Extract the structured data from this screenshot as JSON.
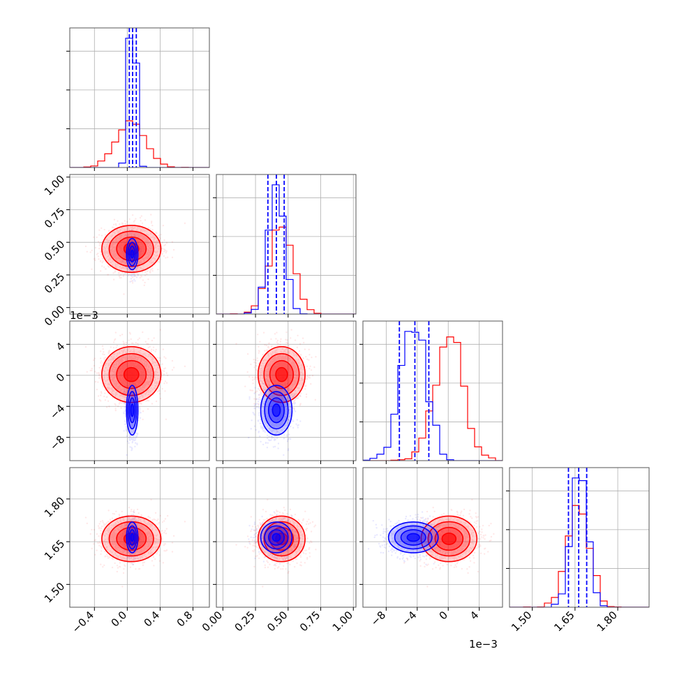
{
  "chart_data": {
    "type": "corner",
    "parameters": [
      {
        "range": [
          -0.7,
          1.0
        ],
        "ticks": [
          -0.4,
          0.0,
          0.4,
          0.8
        ],
        "tick_labels": [
          "−0.4",
          "0.0",
          "0.4",
          "0.8"
        ],
        "offset_label": ""
      },
      {
        "range": [
          -0.05,
          1.02
        ],
        "ticks": [
          0.0,
          0.25,
          0.5,
          0.75,
          1.0
        ],
        "tick_labels": [
          "0.00",
          "0.25",
          "0.50",
          "0.75",
          "1.00"
        ],
        "offset_label": ""
      },
      {
        "range": [
          -11,
          7
        ],
        "ticks": [
          -8,
          -4,
          0,
          4
        ],
        "tick_labels": [
          "−8",
          "−4",
          "0",
          "4"
        ],
        "offset_label": "1e−3"
      },
      {
        "range": [
          1.42,
          1.91
        ],
        "ticks": [
          1.5,
          1.65,
          1.8
        ],
        "tick_labels": [
          "1.50",
          "1.65",
          "1.80"
        ],
        "offset_label": ""
      }
    ],
    "series": [
      {
        "color": "#ff0000",
        "mean": [
          0.05,
          0.45,
          0.1,
          1.66
        ],
        "std": [
          0.18,
          0.09,
          1.8,
          0.04
        ]
      },
      {
        "color": "#0000ff",
        "mean": [
          0.06,
          0.41,
          -4.5,
          1.665
        ],
        "std": [
          0.035,
          0.06,
          1.6,
          0.027
        ]
      }
    ],
    "quantile_lines": [
      [
        0.025,
        0.065,
        0.11
      ],
      [
        0.345,
        0.41,
        0.47
      ],
      [
        -6.3,
        -4.3,
        -2.5
      ],
      [
        1.627,
        1.663,
        1.691
      ]
    ],
    "hist_bins": 20,
    "grid": true
  }
}
